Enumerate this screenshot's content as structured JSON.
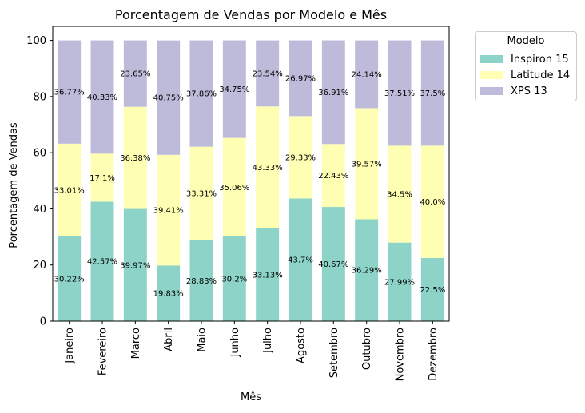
{
  "chart_data": {
    "type": "bar",
    "stacked": true,
    "title": "Porcentagem de Vendas por Modelo e Mês",
    "xlabel": "Mês",
    "ylabel": "Porcentagem de Vendas",
    "ylim": [
      0,
      105
    ],
    "yticks": [
      0,
      20,
      40,
      60,
      80,
      100
    ],
    "grid": false,
    "legend_title": "Modelo",
    "legend_position": "outside-top-right",
    "categories": [
      "Janeiro",
      "Fevereiro",
      "Março",
      "Abril",
      "Maio",
      "Junho",
      "Julho",
      "Agosto",
      "Setembro",
      "Outubro",
      "Novembro",
      "Dezembro"
    ],
    "series": [
      {
        "name": "Inspiron 15",
        "color": "#8dd3c7",
        "values": [
          30.22,
          42.57,
          39.97,
          19.83,
          28.83,
          30.2,
          33.13,
          43.7,
          40.67,
          36.29,
          27.99,
          22.5
        ]
      },
      {
        "name": "Latitude 14",
        "color": "#ffffb3",
        "values": [
          33.01,
          17.1,
          36.38,
          39.41,
          33.31,
          35.06,
          43.33,
          29.33,
          22.43,
          39.57,
          34.5,
          40.0
        ]
      },
      {
        "name": "XPS 13",
        "color": "#bebada",
        "values": [
          36.77,
          40.33,
          23.65,
          40.75,
          37.86,
          34.75,
          23.54,
          26.97,
          36.91,
          24.14,
          37.51,
          37.5
        ]
      }
    ],
    "data_labels": [
      [
        "30.22%",
        "42.57%",
        "39.97%",
        "19.83%",
        "28.83%",
        "30.2%",
        "33.13%",
        "43.7%",
        "40.67%",
        "36.29%",
        "27.99%",
        "22.5%"
      ],
      [
        "33.01%",
        "17.1%",
        "36.38%",
        "39.41%",
        "33.31%",
        "35.06%",
        "43.33%",
        "29.33%",
        "22.43%",
        "39.57%",
        "34.5%",
        "40.0%"
      ],
      [
        "36.77%",
        "40.33%",
        "23.65%",
        "40.75%",
        "37.86%",
        "34.75%",
        "23.54%",
        "26.97%",
        "36.91%",
        "24.14%",
        "37.51%",
        "37.5%"
      ]
    ]
  }
}
